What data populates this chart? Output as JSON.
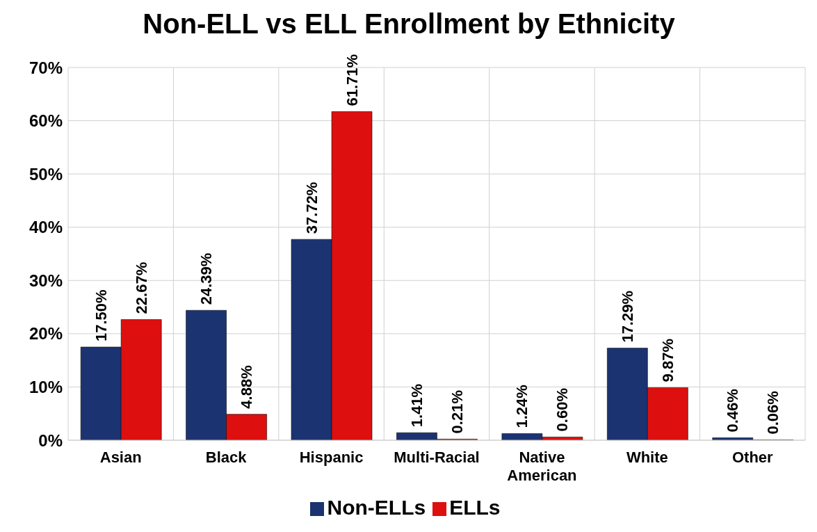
{
  "chart_data": {
    "type": "bar",
    "title": "Non-ELL vs ELL Enrollment by Ethnicity",
    "categories": [
      "Asian",
      "Black",
      "Hispanic",
      "Multi-Racial",
      "Native American",
      "White",
      "Other"
    ],
    "series": [
      {
        "name": "Non-ELLs",
        "color": "#1c3372",
        "values": [
          17.5,
          24.39,
          37.72,
          1.41,
          1.24,
          17.29,
          0.46
        ],
        "value_labels": [
          "17.50%",
          "24.39%",
          "37.72%",
          "1.41%",
          "1.24%",
          "17.29%",
          "0.46%"
        ]
      },
      {
        "name": "ELLs",
        "color": "#dd0f0f",
        "values": [
          22.67,
          4.88,
          61.71,
          0.21,
          0.6,
          9.87,
          0.06
        ],
        "value_labels": [
          "22.67%",
          "4.88%",
          "61.71%",
          "0.21%",
          "0.60%",
          "9.87%",
          "0.06%"
        ]
      }
    ],
    "ylim": [
      0,
      70
    ],
    "yticks": [
      {
        "value": 0,
        "label": "0%"
      },
      {
        "value": 10,
        "label": "10%"
      },
      {
        "value": 20,
        "label": "20%"
      },
      {
        "value": 30,
        "label": "30%"
      },
      {
        "value": 40,
        "label": "40%"
      },
      {
        "value": 50,
        "label": "50%"
      },
      {
        "value": 60,
        "label": "60%"
      },
      {
        "value": 70,
        "label": "70%"
      }
    ],
    "grid": true,
    "legend": "bottom"
  }
}
